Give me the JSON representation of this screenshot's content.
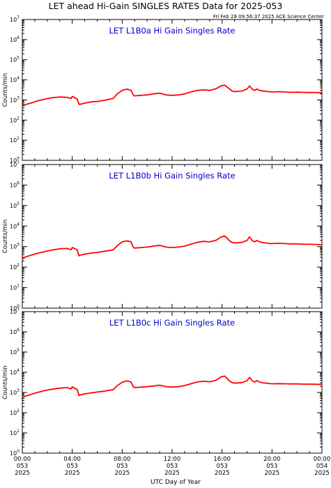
{
  "title": "LET ahead Hi-Gain SINGLES RATES Data for 2025-053",
  "timestamp": "Fri Feb 28 09:56:37 2025 ACE Science Center",
  "xlabel": "UTC Day of Year",
  "colors": {
    "series": "#ff0000",
    "panel_title": "#0000cc",
    "axes": "#000000"
  },
  "chart_data": [
    {
      "type": "line",
      "title": "LET L1B0a Hi Gain Singles Rate",
      "ylabel": "Counts/min",
      "yscale": "log",
      "ylim": [
        1,
        10000000
      ],
      "ytick_exponents": [
        0,
        1,
        2,
        3,
        4,
        5,
        6,
        7
      ],
      "xlim": [
        0,
        24
      ],
      "x": [
        0,
        0.3,
        0.7,
        1.2,
        1.8,
        2.4,
        3.0,
        3.6,
        3.9,
        4.0,
        4.4,
        4.55,
        4.6,
        5.0,
        5.5,
        6.0,
        6.5,
        7.0,
        7.3,
        7.6,
        8.0,
        8.4,
        8.7,
        8.9,
        9.0,
        9.5,
        10.0,
        10.5,
        11.0,
        11.5,
        12.0,
        12.5,
        13.0,
        13.5,
        14.0,
        14.5,
        15.0,
        15.5,
        15.9,
        16.2,
        16.4,
        16.6,
        16.8,
        17.0,
        17.3,
        17.6,
        18.0,
        18.2,
        18.4,
        18.6,
        18.8,
        19.0,
        19.3,
        19.7,
        20.0,
        20.5,
        21.0,
        21.5,
        22.0,
        22.5,
        23.0,
        23.5,
        24.0
      ],
      "y": [
        500,
        600,
        700,
        900,
        1100,
        1300,
        1400,
        1350,
        1200,
        1500,
        1100,
        600,
        600,
        700,
        800,
        850,
        950,
        1100,
        1200,
        2000,
        3000,
        3500,
        3000,
        1700,
        1600,
        1700,
        1800,
        2000,
        2200,
        1800,
        1700,
        1800,
        2000,
        2500,
        3000,
        3200,
        3000,
        3600,
        5000,
        5500,
        4500,
        3500,
        2800,
        2600,
        2700,
        2800,
        3500,
        5000,
        3500,
        3000,
        3500,
        3000,
        2800,
        2600,
        2500,
        2600,
        2500,
        2400,
        2450,
        2400,
        2350,
        2350,
        2300
      ]
    },
    {
      "type": "line",
      "title": "LET L1B0b Hi Gain Singles Rate",
      "ylabel": "Counts/min",
      "yscale": "log",
      "ylim": [
        1,
        10000000
      ],
      "ytick_exponents": [
        0,
        1,
        2,
        3,
        4,
        5,
        6,
        7
      ],
      "xlim": [
        0,
        24
      ],
      "x": [
        0,
        0.3,
        0.7,
        1.2,
        1.8,
        2.4,
        3.0,
        3.6,
        3.9,
        4.0,
        4.4,
        4.55,
        4.6,
        5.0,
        5.5,
        6.0,
        6.5,
        7.0,
        7.3,
        7.6,
        8.0,
        8.4,
        8.7,
        8.9,
        9.0,
        9.5,
        10.0,
        10.5,
        11.0,
        11.5,
        12.0,
        12.5,
        13.0,
        13.5,
        14.0,
        14.5,
        15.0,
        15.5,
        15.9,
        16.2,
        16.4,
        16.6,
        16.8,
        17.0,
        17.3,
        17.6,
        18.0,
        18.2,
        18.4,
        18.6,
        18.8,
        19.0,
        19.3,
        19.7,
        20.0,
        20.5,
        21.0,
        21.5,
        22.0,
        22.5,
        23.0,
        23.5,
        24.0
      ],
      "y": [
        250,
        320,
        380,
        470,
        570,
        680,
        780,
        820,
        700,
        900,
        700,
        350,
        380,
        430,
        480,
        520,
        580,
        650,
        700,
        1100,
        1700,
        1900,
        1700,
        900,
        850,
        900,
        950,
        1050,
        1150,
        950,
        900,
        950,
        1050,
        1300,
        1600,
        1800,
        1700,
        2000,
        2900,
        3300,
        2600,
        1900,
        1600,
        1500,
        1550,
        1600,
        2000,
        3000,
        2000,
        1700,
        2000,
        1700,
        1550,
        1450,
        1400,
        1450,
        1400,
        1350,
        1350,
        1300,
        1300,
        1280,
        1250
      ]
    },
    {
      "type": "line",
      "title": "LET L1B0c Hi Gain Singles Rate",
      "ylabel": "Counts/min",
      "yscale": "log",
      "ylim": [
        1,
        10000000
      ],
      "ytick_exponents": [
        0,
        1,
        2,
        3,
        4,
        5,
        6,
        7
      ],
      "xlim": [
        0,
        24
      ],
      "x": [
        0,
        0.3,
        0.7,
        1.2,
        1.8,
        2.4,
        3.0,
        3.6,
        3.9,
        4.0,
        4.4,
        4.55,
        4.6,
        5.0,
        5.5,
        6.0,
        6.5,
        7.0,
        7.3,
        7.6,
        8.0,
        8.4,
        8.7,
        8.9,
        9.0,
        9.5,
        10.0,
        10.5,
        11.0,
        11.5,
        12.0,
        12.5,
        13.0,
        13.5,
        14.0,
        14.5,
        15.0,
        15.5,
        15.9,
        16.2,
        16.4,
        16.6,
        16.8,
        17.0,
        17.3,
        17.6,
        18.0,
        18.2,
        18.4,
        18.6,
        18.8,
        19.0,
        19.3,
        19.7,
        20.0,
        20.5,
        21.0,
        21.5,
        22.0,
        22.5,
        23.0,
        23.5,
        24.0
      ],
      "y": [
        550,
        680,
        800,
        1000,
        1250,
        1450,
        1650,
        1750,
        1500,
        1900,
        1400,
        700,
        750,
        850,
        950,
        1050,
        1150,
        1300,
        1400,
        2200,
        3200,
        3800,
        3300,
        1900,
        1750,
        1850,
        1950,
        2100,
        2300,
        1950,
        1850,
        1950,
        2200,
        2700,
        3300,
        3600,
        3400,
        4000,
        5800,
        6500,
        5000,
        3700,
        3100,
        2900,
        3000,
        3100,
        3800,
        5600,
        3900,
        3300,
        3900,
        3300,
        3000,
        2800,
        2700,
        2750,
        2700,
        2650,
        2650,
        2600,
        2600,
        2550,
        2500
      ]
    }
  ],
  "xticks": [
    {
      "time": "00:00",
      "day": "053",
      "year": "2025",
      "value": 0
    },
    {
      "time": "04:00",
      "day": "053",
      "year": "2025",
      "value": 4
    },
    {
      "time": "08:00",
      "day": "053",
      "year": "2025",
      "value": 8
    },
    {
      "time": "12:00",
      "day": "053",
      "year": "2025",
      "value": 12
    },
    {
      "time": "16:00",
      "day": "053",
      "year": "2025",
      "value": 16
    },
    {
      "time": "20:00",
      "day": "053",
      "year": "2025",
      "value": 20
    },
    {
      "time": "00:00",
      "day": "054",
      "year": "2025",
      "value": 24
    }
  ]
}
